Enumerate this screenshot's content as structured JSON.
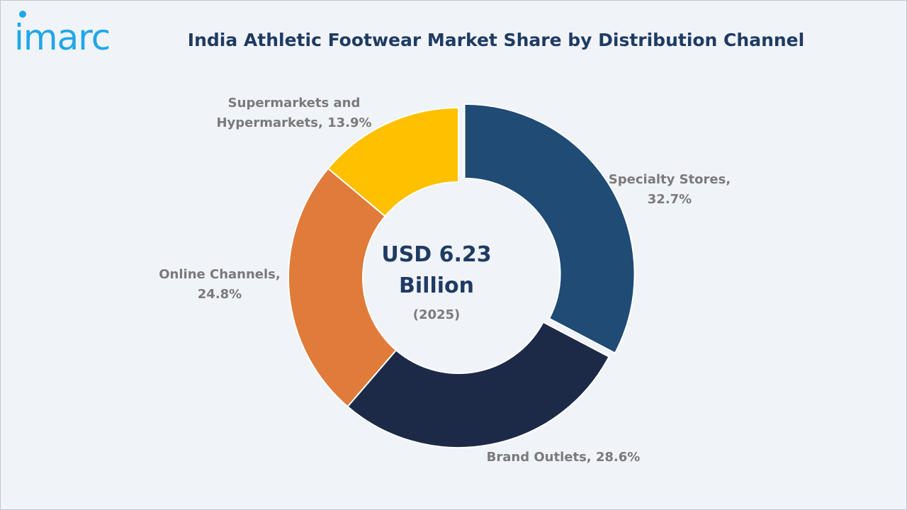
{
  "brand": {
    "logo_text": "imarc",
    "logo_color": "#1fa7e8"
  },
  "chart_data": {
    "type": "pie",
    "title": "India Athletic Footwear Market Share by Distribution Channel",
    "center_value": "USD 6.23 Billion",
    "center_line1": "USD 6.23",
    "center_line2": "Billion",
    "center_year": "(2025)",
    "unit": "%",
    "slices": [
      {
        "label": "Specialty Stores",
        "value": 32.7,
        "color": "#1f4b75",
        "text": "Specialty Stores,\n32.7%"
      },
      {
        "label": "Brand Outlets",
        "value": 28.6,
        "color": "#1c2a48",
        "text": "Brand Outlets, 28.6%"
      },
      {
        "label": "Online Channels",
        "value": 24.8,
        "color": "#e07b39",
        "text": "Online Channels,\n24.8%"
      },
      {
        "label": "Supermarkets and Hypermarkets",
        "value": 13.9,
        "color": "#ffc000",
        "text": "Supermarkets and\nHypermarkets, 13.9%"
      }
    ]
  }
}
